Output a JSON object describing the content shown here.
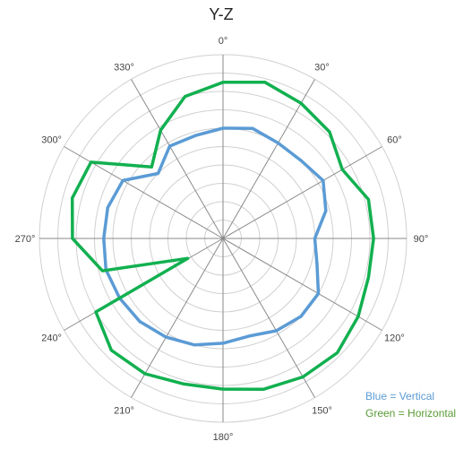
{
  "chart_data": {
    "type": "polar",
    "title": "Y-Z",
    "angle_unit": "degrees",
    "angle_labels": [
      "0°",
      "30°",
      "60°",
      "90°",
      "120°",
      "150°",
      "180°",
      "210°",
      "240°",
      "270°",
      "300°",
      "330°"
    ],
    "angle_ticks": [
      0,
      30,
      60,
      90,
      120,
      150,
      180,
      210,
      240,
      270,
      300,
      330
    ],
    "rlim": [
      0,
      1
    ],
    "ring_count": 10,
    "grid": true,
    "direction": "clockwise",
    "zero_at": "top",
    "series": [
      {
        "legend_text": "Blue = Vertical",
        "color": "#5b9bd5",
        "angles": [
          0,
          15,
          30,
          45,
          60,
          75,
          90,
          105,
          120,
          135,
          150,
          165,
          180,
          195,
          210,
          225,
          240,
          255,
          270,
          285,
          300,
          315,
          330,
          345
        ],
        "values": [
          0.6,
          0.62,
          0.6,
          0.6,
          0.63,
          0.58,
          0.5,
          0.53,
          0.6,
          0.6,
          0.58,
          0.55,
          0.57,
          0.6,
          0.62,
          0.64,
          0.65,
          0.66,
          0.65,
          0.65,
          0.63,
          0.5,
          0.58,
          0.58
        ]
      },
      {
        "legend_text": "Green = Horizontal",
        "color": "#12b050",
        "angles": [
          0,
          15,
          30,
          45,
          60,
          75,
          90,
          105,
          120,
          135,
          150,
          165,
          180,
          195,
          210,
          225,
          240,
          240.5,
          255,
          270,
          285,
          300,
          315,
          330,
          345
        ],
        "values": [
          0.85,
          0.88,
          0.85,
          0.82,
          0.75,
          0.82,
          0.82,
          0.82,
          0.85,
          0.88,
          0.87,
          0.85,
          0.82,
          0.82,
          0.85,
          0.86,
          0.8,
          0.22,
          0.68,
          0.82,
          0.85,
          0.83,
          0.55,
          0.68,
          0.8
        ]
      }
    ]
  }
}
